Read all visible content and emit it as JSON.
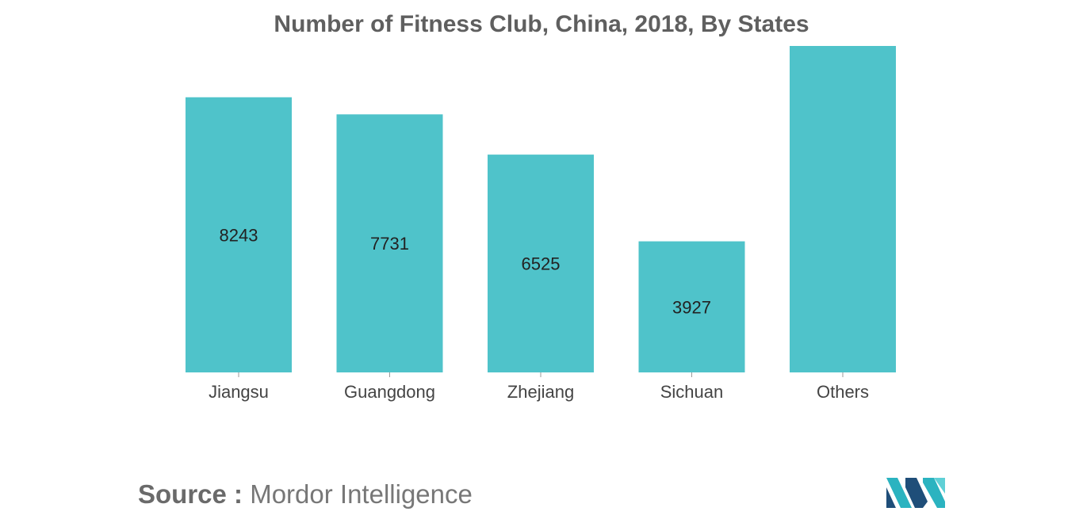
{
  "chart_data": {
    "type": "bar",
    "title": "Number of Fitness Club, China, 2018, By States",
    "categories": [
      "Jiangsu",
      "Guangdong",
      "Zhejiang",
      "Sichuan",
      "Others"
    ],
    "values": [
      8243,
      7731,
      6525,
      3927,
      9780
    ],
    "data_labels": [
      "8243",
      "7731",
      "6525",
      "3927",
      ""
    ],
    "bar_color": "#4fc3ca",
    "xlabel": "",
    "ylabel": "",
    "ylim": [
      0,
      9780
    ],
    "grid": false,
    "legend": "none"
  },
  "source": {
    "key": "Source :",
    "value": "Mordor Intelligence"
  },
  "logo": {
    "icon": "mordor-intelligence-logo-icon",
    "colors": [
      "#1f4e79",
      "#2bb3c0",
      "#5fd0d6"
    ]
  }
}
